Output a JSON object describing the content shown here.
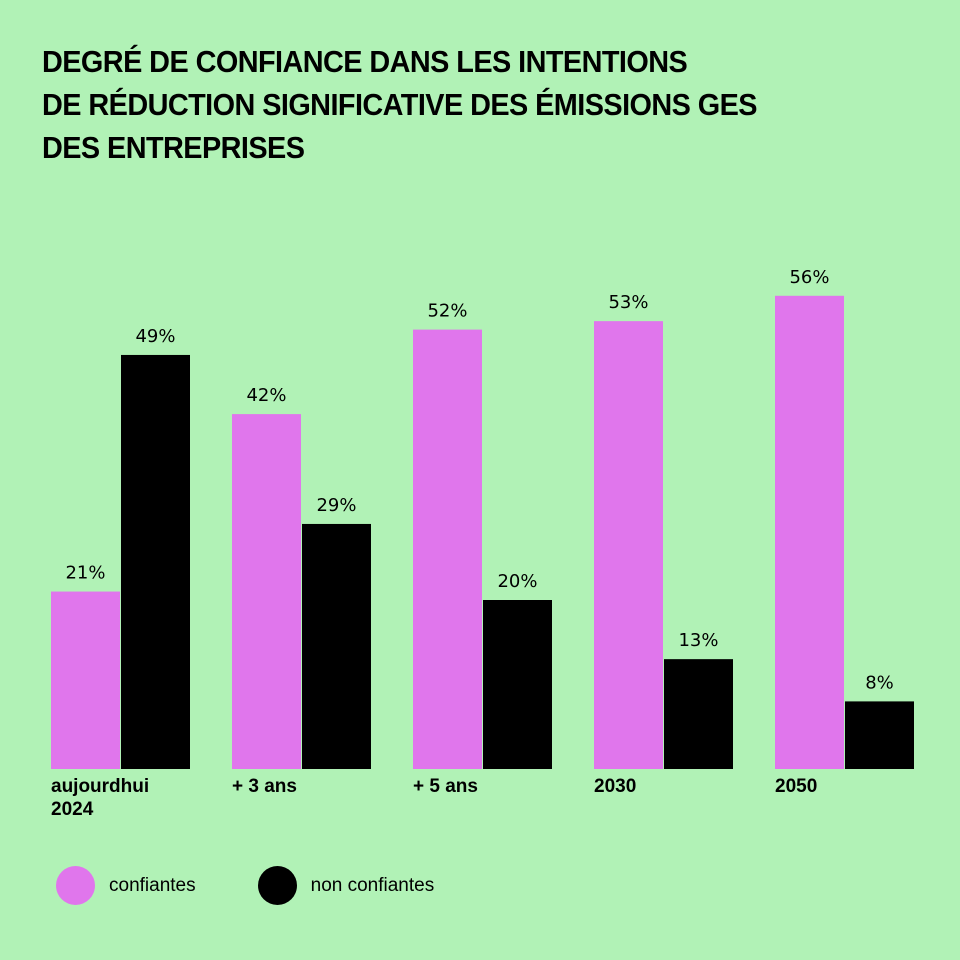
{
  "colors": {
    "background": "#b1f2b6",
    "confiantes": "#e076ec",
    "non_confiantes": "#000000"
  },
  "chart_data": {
    "type": "bar",
    "title": "DEGRÉ DE CONFIANCE DANS LES INTENTIONS DE RÉDUCTION SIGNIFICATIVE DES ÉMISSIONS GES DES ENTREPRISES",
    "title_lines": [
      "DEGRÉ DE CONFIANCE DANS LES INTENTIONS",
      "DE RÉDUCTION SIGNIFICATIVE DES ÉMISSIONS GES",
      "DES ENTREPRISES"
    ],
    "categories": [
      "aujourdhui 2024",
      "+ 3 ans",
      "+ 5 ans",
      "2030",
      "2050"
    ],
    "category_lines": [
      [
        "aujourdhui",
        "2024"
      ],
      [
        "+ 3 ans"
      ],
      [
        "+ 5 ans"
      ],
      [
        "2030"
      ],
      [
        "2050"
      ]
    ],
    "series": [
      {
        "name": "confiantes",
        "color": "#e076ec",
        "values": [
          21,
          42,
          52,
          53,
          56
        ],
        "labels": [
          "21%",
          "42%",
          "52%",
          "53%",
          "56%"
        ]
      },
      {
        "name": "non confiantes",
        "color": "#000000",
        "values": [
          49,
          29,
          20,
          13,
          8
        ],
        "labels": [
          "49%",
          "29%",
          "20%",
          "13%",
          "8%"
        ]
      }
    ],
    "xlabel": "",
    "ylabel": "",
    "ylim": [
      0,
      60
    ],
    "grid": false,
    "legend": "bottom-left",
    "value_format": "percent"
  }
}
